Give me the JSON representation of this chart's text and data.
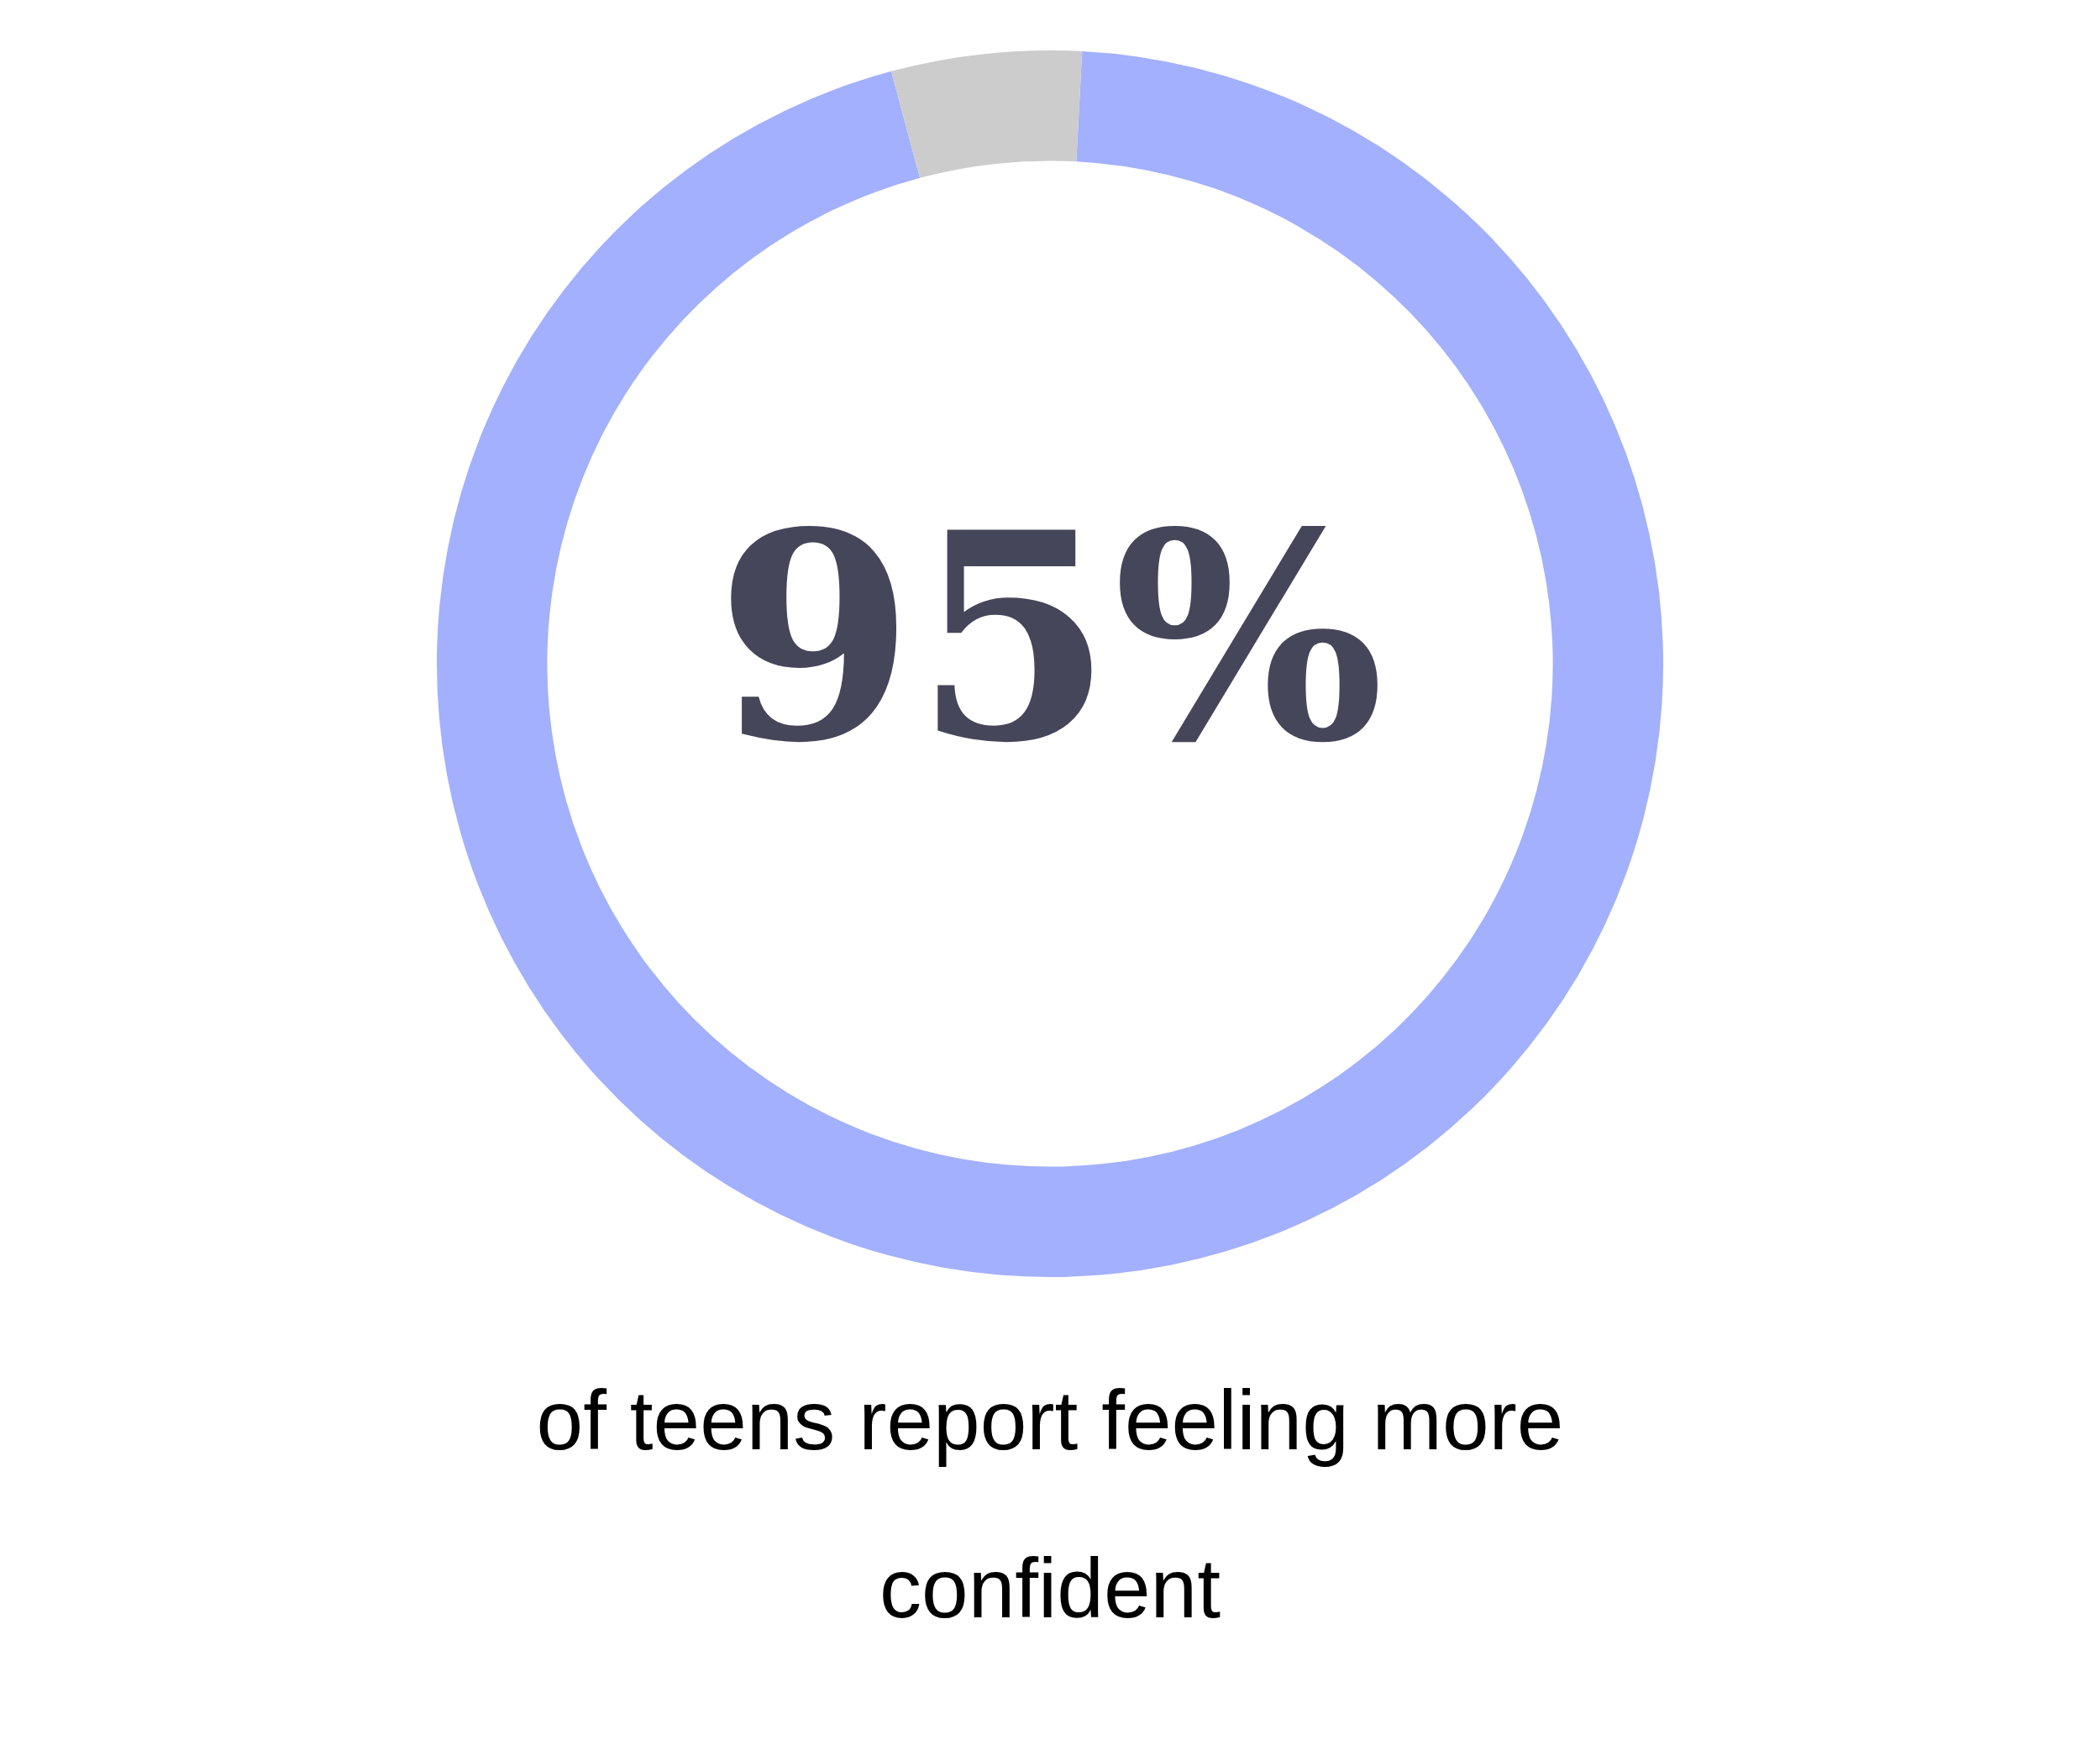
{
  "chart_data": {
    "type": "donut",
    "categories": [
      null,
      null
    ],
    "values": [
      95,
      5
    ],
    "colors": [
      "#a3b0fd",
      "#cccccc"
    ],
    "value_labels": [
      "95%",
      null
    ],
    "annotations": [
      "of teens report feeling more confident"
    ],
    "legend": false
  }
}
